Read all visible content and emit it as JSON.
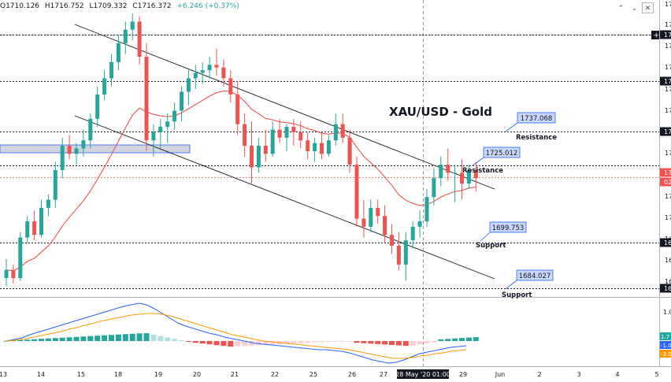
{
  "header": {
    "open": "O1710.126",
    "high": "H1716.752",
    "low": "L1709.332",
    "close": "C1716.372",
    "change": "+6.246 (+0.37%)"
  },
  "toolbar": {
    "up_icon": "chevron-up-icon",
    "down_icon": "chevron-down-icon",
    "close_icon": "close-icon"
  },
  "chart_data": {
    "type": "candlestick",
    "title": "XAU/USD - Gold",
    "timeframe": "hourly",
    "x_ticks": [
      "13",
      "14",
      "15",
      "18",
      "19",
      "20",
      "21",
      "22",
      "25",
      "26",
      "27",
      "28 May '20",
      "01:00",
      "29",
      "Jun",
      "2",
      "3",
      "4",
      "5"
    ],
    "crosshair_label": "28 May '20   01:00",
    "price_axis_labels": [
      "17",
      "17",
      "17",
      "17",
      "17",
      "17",
      "17",
      "17",
      "17",
      "17",
      "17",
      "16",
      "16",
      "16",
      "16"
    ],
    "price_axis_tags": [
      "17",
      "17",
      "17",
      "17",
      "02",
      "16",
      "16"
    ],
    "levels": [
      {
        "label": "Resistance",
        "value": 1737.068
      },
      {
        "label": "Resistance",
        "value": 1725.012
      },
      {
        "label": "Support",
        "value": 1699.753
      },
      {
        "label": "Support",
        "value": 1684.027
      }
    ],
    "candles": [
      [
        1683,
        1690,
        1680,
        1686
      ],
      [
        1686,
        1688,
        1681,
        1683
      ],
      [
        1683,
        1700,
        1682,
        1698
      ],
      [
        1698,
        1706,
        1696,
        1704
      ],
      [
        1704,
        1708,
        1697,
        1699
      ],
      [
        1699,
        1712,
        1698,
        1709
      ],
      [
        1709,
        1714,
        1706,
        1712
      ],
      [
        1712,
        1726,
        1709,
        1723
      ],
      [
        1723,
        1735,
        1720,
        1732
      ],
      [
        1732,
        1736,
        1727,
        1729
      ],
      [
        1729,
        1733,
        1725,
        1731
      ],
      [
        1731,
        1738,
        1728,
        1734
      ],
      [
        1734,
        1744,
        1731,
        1742
      ],
      [
        1742,
        1754,
        1739,
        1751
      ],
      [
        1751,
        1760,
        1749,
        1757
      ],
      [
        1757,
        1766,
        1754,
        1763
      ],
      [
        1763,
        1773,
        1760,
        1770
      ],
      [
        1770,
        1778,
        1766,
        1775
      ],
      [
        1775,
        1781,
        1771,
        1778
      ],
      [
        1778,
        1780,
        1762,
        1765
      ],
      [
        1765,
        1770,
        1730,
        1734
      ],
      [
        1734,
        1740,
        1728,
        1737
      ],
      [
        1737,
        1742,
        1731,
        1739
      ],
      [
        1739,
        1744,
        1733,
        1741
      ],
      [
        1741,
        1748,
        1738,
        1745
      ],
      [
        1745,
        1754,
        1741,
        1752
      ],
      [
        1752,
        1760,
        1747,
        1757
      ],
      [
        1757,
        1762,
        1753,
        1759
      ],
      [
        1759,
        1763,
        1755,
        1760
      ],
      [
        1760,
        1765,
        1757,
        1762
      ],
      [
        1762,
        1768,
        1758,
        1761
      ],
      [
        1761,
        1764,
        1754,
        1757
      ],
      [
        1757,
        1760,
        1748,
        1751
      ],
      [
        1751,
        1756,
        1736,
        1740
      ],
      [
        1740,
        1744,
        1728,
        1732
      ],
      [
        1732,
        1741,
        1718,
        1724
      ],
      [
        1724,
        1735,
        1722,
        1732
      ],
      [
        1732,
        1738,
        1726,
        1729
      ],
      [
        1729,
        1741,
        1728,
        1738
      ],
      [
        1738,
        1742,
        1733,
        1735
      ],
      [
        1735,
        1740,
        1730,
        1739
      ],
      [
        1739,
        1742,
        1732,
        1737
      ],
      [
        1737,
        1741,
        1731,
        1734
      ],
      [
        1734,
        1737,
        1727,
        1730
      ],
      [
        1730,
        1735,
        1726,
        1733
      ],
      [
        1733,
        1737,
        1727,
        1729
      ],
      [
        1729,
        1736,
        1728,
        1734
      ],
      [
        1734,
        1744,
        1732,
        1740
      ],
      [
        1740,
        1744,
        1733,
        1735
      ],
      [
        1735,
        1738,
        1722,
        1725
      ],
      [
        1725,
        1728,
        1702,
        1705
      ],
      [
        1705,
        1712,
        1698,
        1702
      ],
      [
        1702,
        1712,
        1700,
        1709
      ],
      [
        1709,
        1712,
        1703,
        1706
      ],
      [
        1706,
        1710,
        1696,
        1699
      ],
      [
        1699,
        1703,
        1692,
        1695
      ],
      [
        1695,
        1700,
        1686,
        1688
      ],
      [
        1688,
        1700,
        1682,
        1697
      ],
      [
        1697,
        1704,
        1694,
        1702
      ],
      [
        1702,
        1708,
        1698,
        1704
      ],
      [
        1704,
        1716,
        1702,
        1713
      ],
      [
        1713,
        1724,
        1710,
        1720
      ],
      [
        1720,
        1728,
        1717,
        1725
      ],
      [
        1725,
        1731,
        1719,
        1722
      ],
      [
        1722,
        1725,
        1711,
        1722
      ],
      [
        1722,
        1727,
        1712,
        1718
      ],
      [
        1718,
        1725,
        1716,
        1723
      ],
      [
        1723,
        1726,
        1715,
        1720
      ]
    ],
    "macd_panel": {
      "axis_labels": [
        "1.0",
        "1.7",
        "-1.0",
        "-3.0"
      ]
    }
  }
}
